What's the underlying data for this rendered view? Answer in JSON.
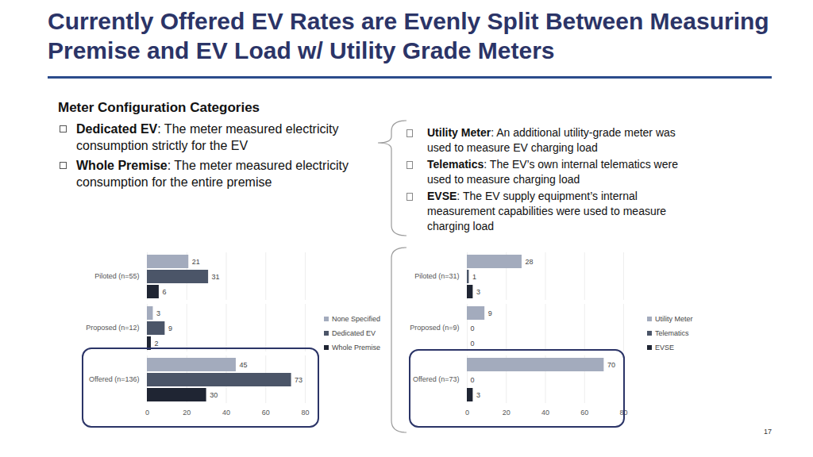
{
  "title": "Currently Offered EV Rates are Evenly Split Between Measuring Premise and EV Load w/ Utility Grade Meters",
  "heading": "Meter Configuration Categories",
  "left_items": [
    {
      "term": "Dedicated EV",
      "text": ": The meter measured electricity consumption strictly for the EV"
    },
    {
      "term": "Whole Premise",
      "text": ": The meter measured electricity consumption for the entire premise"
    }
  ],
  "right_items": [
    {
      "term": "Utility Meter",
      "text": ": An additional utility-grade meter was used to measure EV charging load"
    },
    {
      "term": "Telematics",
      "text": ": The EV’s own internal telematics were used to measure charging load"
    },
    {
      "term": "EVSE",
      "text": ": The EV supply equipment’s internal measurement capabilities were used to measure charging load"
    }
  ],
  "page_number": "17",
  "chart_data": [
    {
      "type": "bar",
      "orientation": "horizontal",
      "categories": [
        "Piloted (n=55)",
        "Proposed (n=12)",
        "Offered (n=136)"
      ],
      "series": [
        {
          "name": "None Specified",
          "color": "#a3abbd",
          "values": [
            21,
            3,
            45
          ]
        },
        {
          "name": "Dedicated EV",
          "color": "#4b5568",
          "values": [
            31,
            9,
            73
          ]
        },
        {
          "name": "Whole Premise",
          "color": "#1f2533",
          "values": [
            6,
            2,
            30
          ]
        }
      ],
      "xlim": [
        0,
        80
      ],
      "xticks": [
        0,
        20,
        40,
        60,
        80
      ],
      "grid": true,
      "data_labels": true,
      "legend": "right"
    },
    {
      "type": "bar",
      "orientation": "horizontal",
      "categories": [
        "Piloted (n=31)",
        "Proposed (n=9)",
        "Offered (n=73)"
      ],
      "series": [
        {
          "name": "Utility Meter",
          "color": "#a3abbd",
          "values": [
            28,
            9,
            70
          ]
        },
        {
          "name": "Telematics",
          "color": "#4b5568",
          "values": [
            1,
            0,
            0
          ]
        },
        {
          "name": "EVSE",
          "color": "#1f2533",
          "values": [
            3,
            0,
            3
          ]
        }
      ],
      "xlim": [
        0,
        80
      ],
      "xticks": [
        0,
        20,
        40,
        60,
        80
      ],
      "grid": true,
      "data_labels": true,
      "legend": "right"
    }
  ]
}
